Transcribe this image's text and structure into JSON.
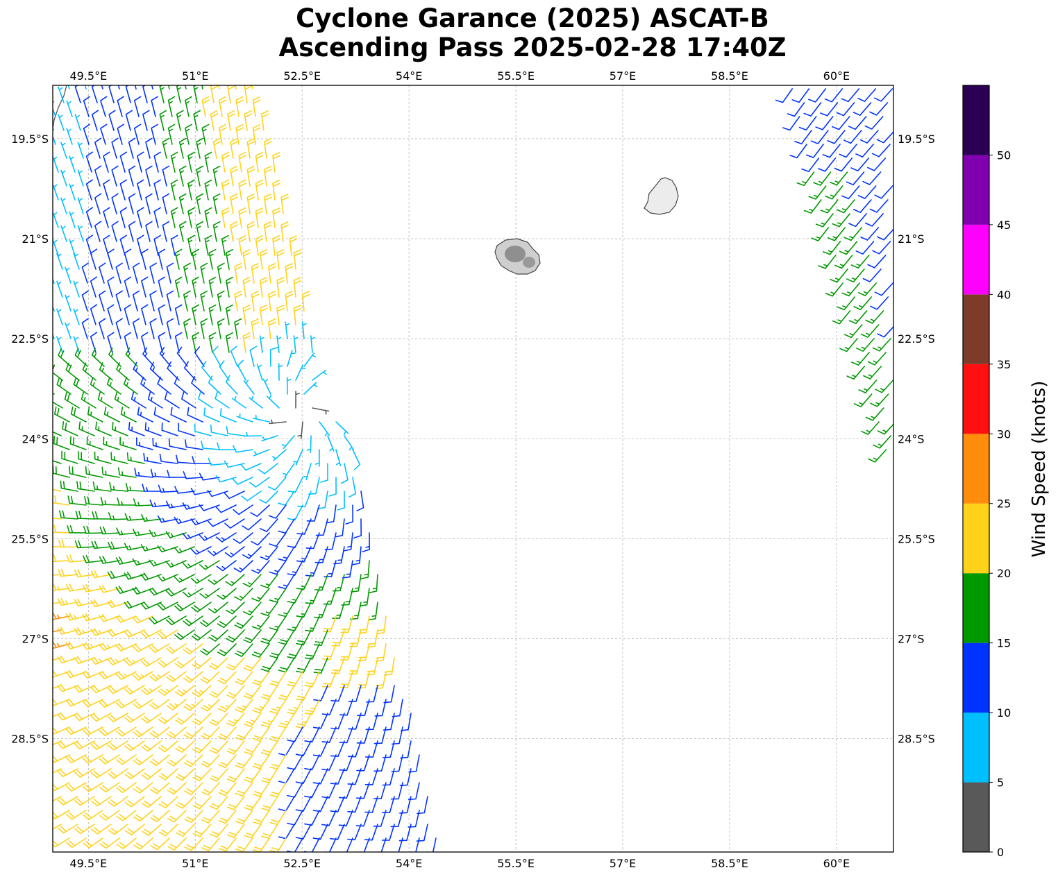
{
  "title": {
    "line1": "Cyclone Garance (2025) ASCAT-B",
    "line2": "Ascending Pass 2025-02-28 17:40Z"
  },
  "map": {
    "lon_range": [
      49.0,
      60.8
    ],
    "lat_range": [
      -30.2,
      -18.7
    ],
    "lon_ticks": [
      {
        "value": 49.5,
        "label": "49.5°E"
      },
      {
        "value": 51.0,
        "label": "51°E"
      },
      {
        "value": 52.5,
        "label": "52.5°E"
      },
      {
        "value": 54.0,
        "label": "54°E"
      },
      {
        "value": 55.5,
        "label": "55.5°E"
      },
      {
        "value": 57.0,
        "label": "57°E"
      },
      {
        "value": 58.5,
        "label": "58.5°E"
      },
      {
        "value": 60.0,
        "label": "60°E"
      }
    ],
    "lat_ticks": [
      {
        "value": -19.5,
        "label": "19.5°S"
      },
      {
        "value": -21.0,
        "label": "21°S"
      },
      {
        "value": -22.5,
        "label": "22.5°S"
      },
      {
        "value": -24.0,
        "label": "24°S"
      },
      {
        "value": -25.5,
        "label": "25.5°S"
      },
      {
        "value": -27.0,
        "label": "27°S"
      },
      {
        "value": -28.5,
        "label": "28.5°S"
      }
    ],
    "gridlines": true,
    "land_features": [
      "Réunion island",
      "Mauritius island",
      "Madagascar coastline"
    ]
  },
  "colorbar": {
    "label": "Wind Speed (knots)",
    "ticks": [
      "0",
      "5",
      "10",
      "15",
      "20",
      "25",
      "30",
      "35",
      "40",
      "45",
      "50"
    ],
    "bins": [
      {
        "min": 0,
        "max": 5,
        "color": "#595959"
      },
      {
        "min": 5,
        "max": 10,
        "color": "#00bfff"
      },
      {
        "min": 10,
        "max": 15,
        "color": "#0033ff"
      },
      {
        "min": 15,
        "max": 20,
        "color": "#009900"
      },
      {
        "min": 20,
        "max": 25,
        "color": "#ffd21a"
      },
      {
        "min": 25,
        "max": 30,
        "color": "#ff8c0a"
      },
      {
        "min": 30,
        "max": 35,
        "color": "#ff1010"
      },
      {
        "min": 35,
        "max": 40,
        "color": "#7f3b2a"
      },
      {
        "min": 40,
        "max": 45,
        "color": "#ff00ff"
      },
      {
        "min": 45,
        "max": 50,
        "color": "#8000b0"
      },
      {
        "min": 50,
        "max": 55,
        "color": "#2b0054"
      }
    ]
  }
}
